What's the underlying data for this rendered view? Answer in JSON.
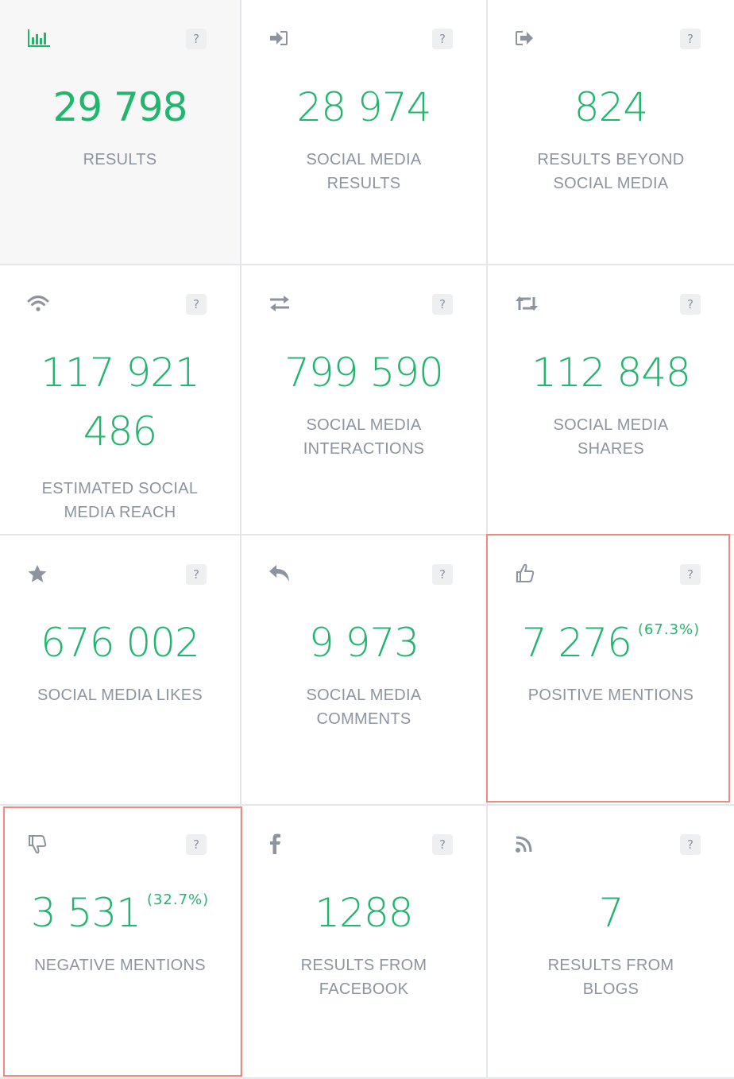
{
  "colors": {
    "accent": "#21b66d",
    "label": "#8c94a0",
    "highlight_border": "#f08a80",
    "active_background": "#f7f7f7"
  },
  "cards": [
    {
      "icon": "bar-chart-icon",
      "value": "29 798",
      "label_line1": "RESULTS",
      "label_line2": "",
      "help": "?"
    },
    {
      "icon": "sign-in-icon",
      "value": "28 974",
      "label_line1": "SOCIAL MEDIA",
      "label_line2": "RESULTS",
      "help": "?"
    },
    {
      "icon": "sign-out-icon",
      "value": "824",
      "label_line1": "RESULTS BEYOND",
      "label_line2": "SOCIAL MEDIA",
      "help": "?"
    },
    {
      "icon": "wifi-icon",
      "value_line1": "117 921",
      "value_line2": "486",
      "label_line1": "ESTIMATED SOCIAL",
      "label_line2": "MEDIA REACH",
      "help": "?"
    },
    {
      "icon": "exchange-arrows-icon",
      "value": "799 590",
      "label_line1": "SOCIAL MEDIA",
      "label_line2": "INTERACTIONS",
      "help": "?"
    },
    {
      "icon": "retweet-icon",
      "value": "112 848",
      "label_line1": "SOCIAL MEDIA",
      "label_line2": "SHARES",
      "help": "?"
    },
    {
      "icon": "star-icon",
      "value": "676 002",
      "label_line1": "SOCIAL MEDIA LIKES",
      "label_line2": "",
      "help": "?"
    },
    {
      "icon": "reply-icon",
      "value": "9 973",
      "label_line1": "SOCIAL MEDIA",
      "label_line2": "COMMENTS",
      "help": "?"
    },
    {
      "icon": "thumbs-up-icon",
      "value": "7 276",
      "percent": "(67.3%)",
      "label_line1": "POSITIVE MENTIONS",
      "label_line2": "",
      "help": "?"
    },
    {
      "icon": "thumbs-down-icon",
      "value": "3 531",
      "percent": "(32.7%)",
      "label_line1": "NEGATIVE MENTIONS",
      "label_line2": "",
      "help": "?"
    },
    {
      "icon": "facebook-icon",
      "value": "1288",
      "label_line1": "RESULTS FROM",
      "label_line2": "FACEBOOK",
      "help": "?"
    },
    {
      "icon": "rss-icon",
      "value": "7",
      "label_line1": "RESULTS FROM",
      "label_line2": "BLOGS",
      "help": "?"
    }
  ]
}
